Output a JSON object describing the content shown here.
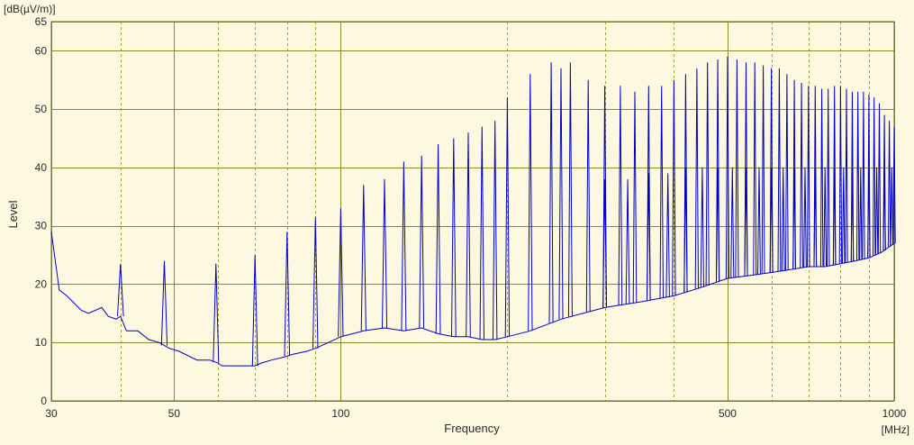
{
  "chart_data": {
    "type": "line",
    "title": "",
    "unit_label": "[dB(µV/m)]",
    "ylabel": "Level",
    "xlabel": "Frequency",
    "x_unit_label": "[MHz]",
    "x_scale": "log",
    "xlim": [
      30,
      1000
    ],
    "ylim": [
      0,
      65
    ],
    "x_ticks": [
      30,
      50,
      100,
      500,
      1000
    ],
    "x_tick_labels": [
      "30",
      "50",
      "100",
      "500",
      "1000"
    ],
    "x_minor_gridlines": [
      40,
      60,
      70,
      80,
      90,
      200,
      300,
      400,
      600,
      700,
      800,
      900
    ],
    "y_ticks": [
      0,
      10,
      20,
      30,
      40,
      50,
      60,
      65
    ],
    "y_tick_labels": [
      "0",
      "10",
      "20",
      "30",
      "40",
      "50",
      "60",
      "65"
    ],
    "grid": true,
    "colors": {
      "background": "#fdf9e0",
      "plot_background": "#fdf9e0",
      "major_grid": "#8a8a2a",
      "minor_grid": "#a8a040",
      "series": "#0000cc"
    },
    "series": [
      {
        "name": "",
        "baseline": {
          "x": [
            30,
            31,
            32,
            34,
            35,
            37,
            38,
            39.3,
            40,
            41,
            43,
            45,
            47,
            49,
            51,
            55,
            58,
            60,
            61,
            65,
            70,
            72,
            75,
            79,
            82,
            87,
            90,
            95,
            100,
            105,
            110,
            120,
            130,
            140,
            150,
            160,
            170,
            180,
            190,
            200,
            220,
            250,
            300,
            350,
            400,
            450,
            500,
            550,
            600,
            650,
            700,
            750,
            800,
            850,
            900,
            950,
            1000
          ],
          "y": [
            29,
            19,
            18,
            15.5,
            15,
            16,
            14.5,
            14,
            14.5,
            12,
            12,
            10.5,
            10,
            9,
            8.5,
            7,
            7,
            6.5,
            6,
            6,
            6,
            6.5,
            7,
            7.5,
            8,
            8.5,
            9,
            10,
            11,
            11.5,
            12,
            12.5,
            12,
            12.5,
            11.5,
            11,
            11,
            10.5,
            10.5,
            11,
            12,
            14,
            16,
            17,
            18,
            19.5,
            21,
            21.5,
            22,
            22.5,
            23,
            23,
            23.5,
            24,
            24.5,
            25.5,
            27
          ]
        },
        "peaks": {
          "x": [
            40,
            48,
            59.5,
            70,
            80,
            90,
            100,
            110,
            120,
            130,
            140,
            150,
            160,
            170,
            180,
            190,
            200,
            220,
            240,
            250,
            260,
            280,
            300,
            320,
            340,
            360,
            380,
            400,
            420,
            440,
            460,
            480,
            500,
            520,
            540,
            560,
            580,
            600,
            620,
            640,
            660,
            680,
            700,
            720,
            740,
            760,
            780,
            800,
            820,
            840,
            860,
            880,
            900,
            920,
            940,
            960,
            980,
            1000
          ],
          "y": [
            23.5,
            24,
            23.5,
            25,
            29,
            31.5,
            33,
            37,
            38,
            41,
            42,
            44,
            45,
            46,
            47,
            48,
            52,
            56,
            58,
            57,
            58,
            55,
            54,
            54,
            53,
            54,
            54,
            55,
            56,
            57,
            58,
            58.5,
            59,
            58.5,
            58,
            58,
            57.5,
            57,
            57,
            56,
            55,
            54.5,
            54,
            54,
            53.5,
            53.5,
            54,
            54,
            53.5,
            53,
            53,
            53,
            52.5,
            52,
            51,
            49,
            48,
            47
          ]
        },
        "secondary_peaks": {
          "x": [
            300,
            330,
            360,
            390,
            420,
            450,
            480,
            510,
            540,
            570,
            600,
            630,
            660,
            690,
            720,
            750,
            780,
            810,
            840,
            870,
            900,
            930,
            960,
            990
          ],
          "y": [
            38,
            38,
            39,
            39,
            40,
            40,
            40,
            40,
            40,
            40,
            40,
            40,
            40,
            40,
            40,
            40,
            40,
            40,
            40,
            40,
            40,
            40,
            40,
            40
          ]
        }
      }
    ]
  }
}
